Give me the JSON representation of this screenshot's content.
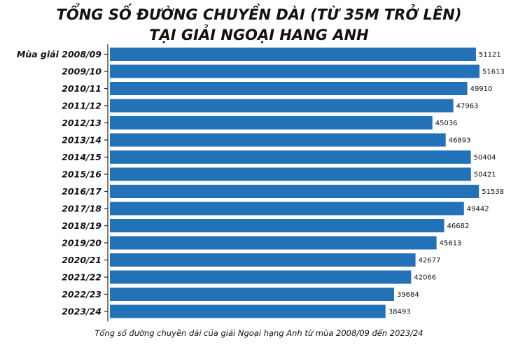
{
  "chart_data": {
    "type": "bar",
    "orientation": "horizontal",
    "title_lines": [
      "TỔNG SỐ ĐƯỜNG CHUYỀN DÀI (TỪ 35M TRỞ LÊN)",
      "TẠI GIẢI NGOẠI HANG ANH"
    ],
    "caption": "Tổng số đường chuyền dài của giải Ngoại hạng Anh từ mùa 2008/09 đến 2023/24",
    "categories": [
      "Mùa giải 2008/09",
      "2009/10",
      "2010/11",
      "2011/12",
      "2012/13",
      "2013/14",
      "2014/15",
      "2015/16",
      "2016/17",
      "2017/18",
      "2018/19",
      "2019/20",
      "2020/21",
      "2021/22",
      "2022/23",
      "2023/24"
    ],
    "values": [
      51121,
      51613,
      49910,
      47963,
      45036,
      46893,
      50404,
      50421,
      51538,
      49442,
      46682,
      45613,
      42677,
      42066,
      39684,
      38493
    ],
    "xlim": [
      0,
      54000
    ],
    "bar_color": "#2372b8",
    "axis_color": "#222222",
    "grid": false,
    "legend": "none"
  }
}
